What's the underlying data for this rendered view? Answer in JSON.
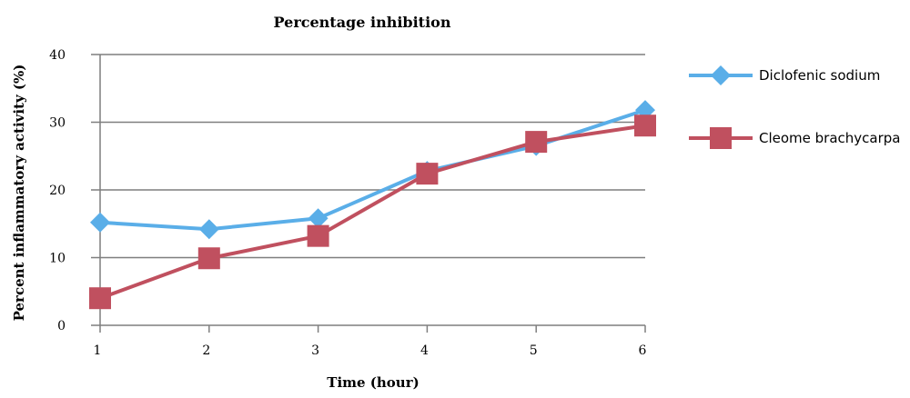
{
  "chart_data": {
    "type": "line",
    "title": "Percentage inhibition",
    "xlabel": "Time (hour)",
    "ylabel": "Percent inflammatory activity (%)",
    "x": [
      1,
      2,
      3,
      4,
      5,
      6
    ],
    "ylim": [
      0,
      40
    ],
    "yticks": [
      0,
      10,
      20,
      30,
      40
    ],
    "grid": true,
    "legend": "right",
    "series": [
      {
        "name": "Diclofenic sodium",
        "values": [
          15.2,
          14.2,
          15.8,
          22.8,
          26.5,
          31.8
        ],
        "color": "#5aaee8",
        "marker": "diamond"
      },
      {
        "name": "Cleome brachycarpa",
        "values": [
          4.0,
          9.9,
          13.2,
          22.4,
          27.1,
          29.5
        ],
        "color": "#c0505f",
        "marker": "square"
      }
    ]
  }
}
